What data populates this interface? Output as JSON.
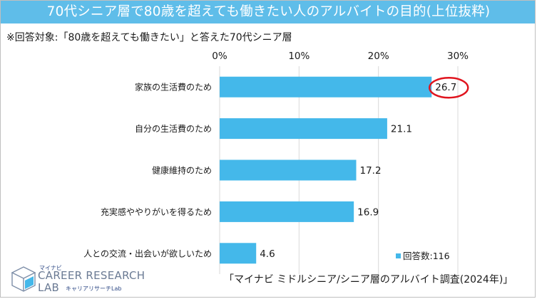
{
  "header": {
    "title": "70代シニア層で80歳を超えても働きたい人のアルバイトの目的(上位抜粋)"
  },
  "subtitle": "※回答対象:「80歳を超えても働きたい」と答えた70代シニア層",
  "chart_data": {
    "type": "bar",
    "orientation": "horizontal",
    "title": "70代シニア層で80歳を超えても働きたい人のアルバイトの目的(上位抜粋)",
    "categories": [
      "家族の生活費のため",
      "自分の生活費のため",
      "健康維持のため",
      "充実感ややりがいを得るため",
      "人との交流・出会いが欲しいため"
    ],
    "values": [
      26.7,
      21.1,
      17.2,
      16.9,
      4.6
    ],
    "value_labels": [
      "26.7",
      "21.1",
      "17.2",
      "16.9",
      "4.6"
    ],
    "xlim": [
      0,
      30
    ],
    "ticks": [
      0,
      10,
      20,
      30
    ],
    "tick_labels": [
      "0%",
      "10%",
      "20%",
      "30%"
    ],
    "xlabel": "",
    "ylabel": "",
    "grid": true,
    "highlight_index": 0,
    "series_name": "回答数:116",
    "legend_position": "bottom-right",
    "bar_color": "#44b8ea",
    "highlight_color": "#e0141e"
  },
  "legend": {
    "label": "回答数:116"
  },
  "source": "「マイナビ ミドルシニア/シニア層のアルバイト調査(2024年)」",
  "logo": {
    "brand_small": "マイナビ",
    "line1": "CAREER RESEARCH",
    "line2": "LAB",
    "sub": "キャリアリサーチLab"
  },
  "colors": {
    "banner": "#5fbde9",
    "bar": "#44b8ea",
    "highlight": "#e0141e"
  }
}
